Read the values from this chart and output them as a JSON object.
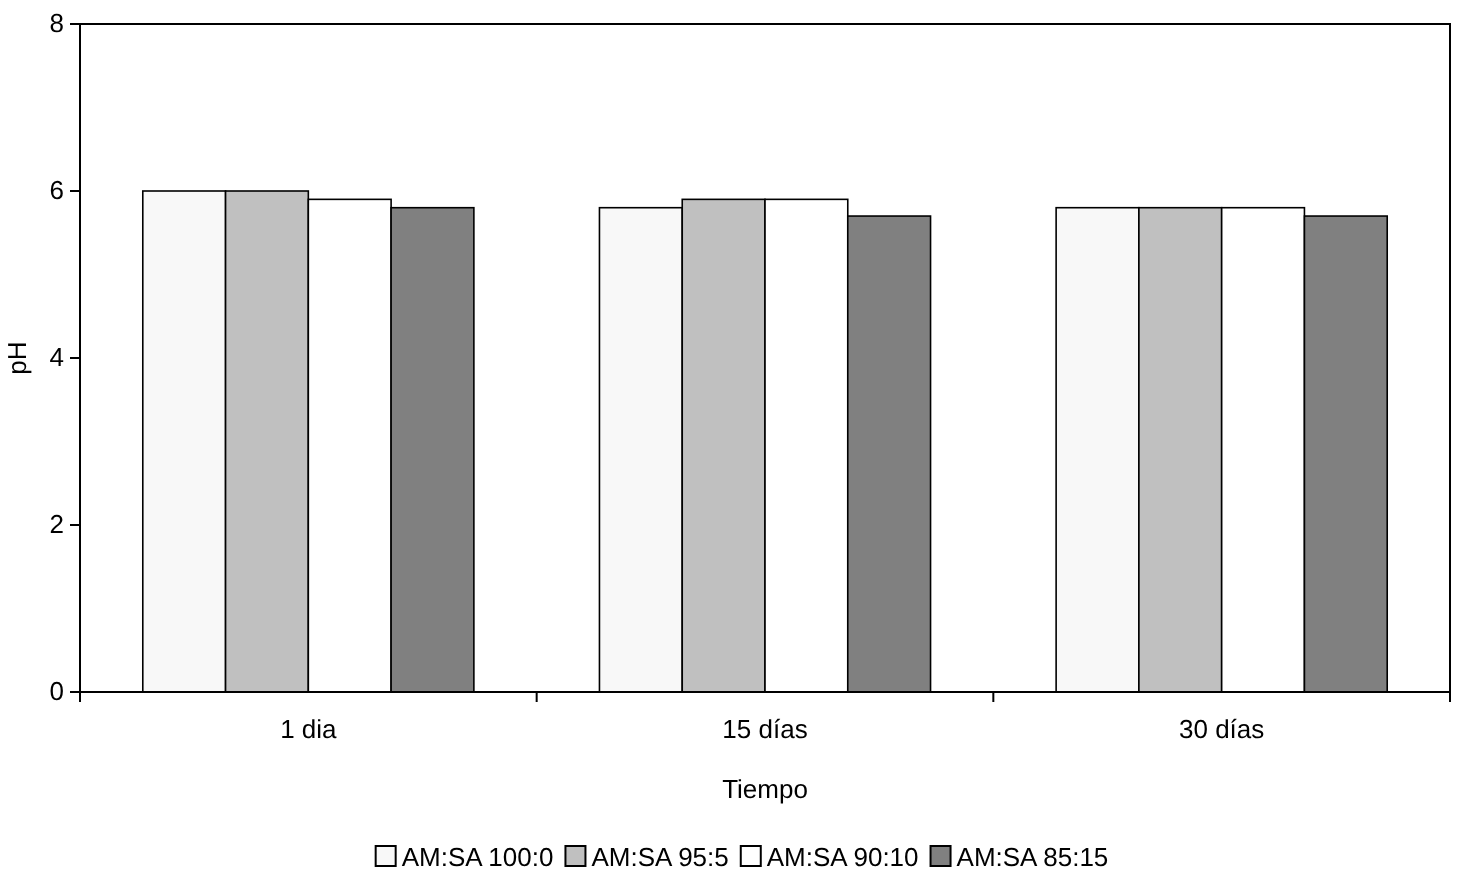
{
  "chart_data": {
    "type": "bar",
    "xlabel": "Tiempo",
    "ylabel": "pH",
    "categories": [
      "1 dia",
      "15 días",
      "30 días"
    ],
    "series": [
      {
        "name": "AM:SA 100:0",
        "color": "#f8f8f8",
        "values": [
          6.0,
          5.8,
          5.8
        ]
      },
      {
        "name": "AM:SA 95:5",
        "color": "#c0c0c0",
        "values": [
          6.0,
          5.9,
          5.8
        ]
      },
      {
        "name": "AM:SA 90:10",
        "color": "#ffffff",
        "values": [
          5.9,
          5.9,
          5.8
        ]
      },
      {
        "name": "AM:SA 85:15",
        "color": "#808080",
        "values": [
          5.8,
          5.7,
          5.7
        ]
      }
    ],
    "ylim": [
      0,
      8
    ],
    "yticks": [
      0,
      2,
      4,
      6,
      8
    ],
    "grid": false,
    "legend": "bottom"
  }
}
